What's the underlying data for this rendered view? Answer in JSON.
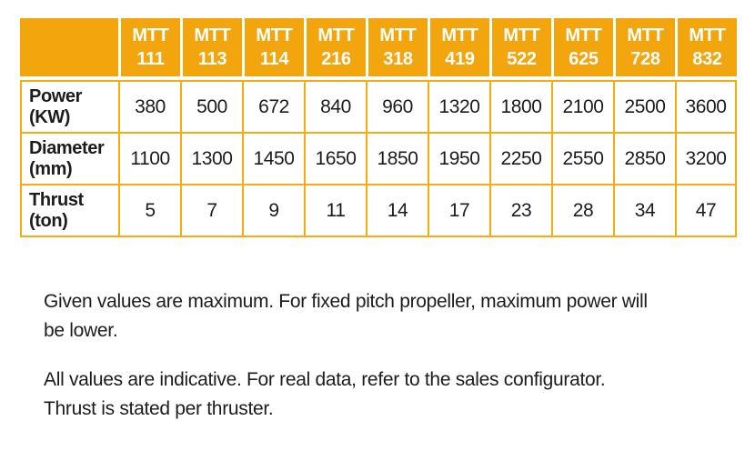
{
  "table": {
    "corner_label": "",
    "columns": [
      "MTT\n111",
      "MTT\n113",
      "MTT\n114",
      "MTT\n216",
      "MTT\n318",
      "MTT\n419",
      "MTT\n522",
      "MTT\n625",
      "MTT\n728",
      "MTT\n832"
    ],
    "rows": [
      {
        "label": "Power\n(KW)",
        "values": [
          "380",
          "500",
          "672",
          "840",
          "960",
          "1320",
          "1800",
          "2100",
          "2500",
          "3600"
        ]
      },
      {
        "label": "Diameter\n(mm)",
        "values": [
          "1100",
          "1300",
          "1450",
          "1650",
          "1850",
          "1950",
          "2250",
          "2550",
          "2850",
          "3200"
        ]
      },
      {
        "label": "Thrust\n(ton)",
        "values": [
          "5",
          "7",
          "9",
          "11",
          "14",
          "17",
          "23",
          "28",
          "34",
          "47"
        ]
      }
    ]
  },
  "notes": {
    "note1": "Given values are maximum. For fixed pitch propeller, maximum power will\nbe lower.",
    "note2": "All values are indicative. For real data, refer to the sales configurator.\nThrust is stated per thruster."
  },
  "colors": {
    "accent_orange": "#F2A50C",
    "header_text": "#FFFFFF",
    "body_text": "#1C1C1C"
  }
}
